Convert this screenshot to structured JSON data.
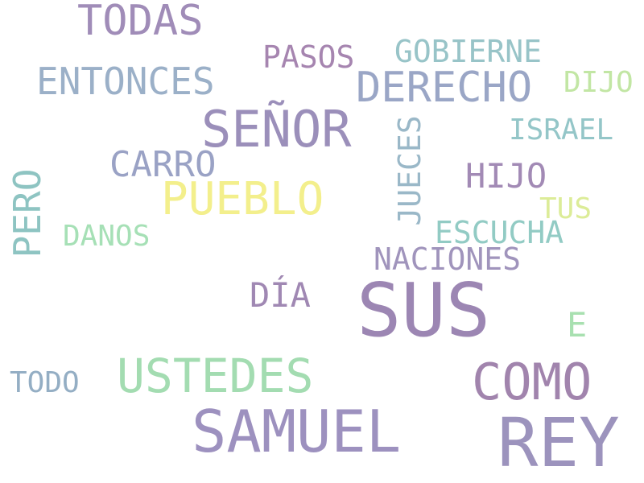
{
  "words": {
    "sus": {
      "text": "SUS",
      "color": "#9c86b3"
    },
    "rey": {
      "text": "REY",
      "color": "#9c93bd"
    },
    "samuel": {
      "text": "SAMUEL",
      "color": "#9d91bf"
    },
    "senor": {
      "text": "SEÑOR",
      "color": "#9b8fba"
    },
    "como": {
      "text": "COMO",
      "color": "#a184ad"
    },
    "ustedes": {
      "text": "USTEDES",
      "color": "#a3dcb1"
    },
    "pueblo": {
      "text": "PUEBLO",
      "color": "#f3ef8c"
    },
    "todas": {
      "text": "TODAS",
      "color": "#a08cb8"
    },
    "derecho": {
      "text": "DERECHO",
      "color": "#9aa6c6"
    },
    "entonces": {
      "text": "ENTONCES",
      "color": "#9bb0c8"
    },
    "carro": {
      "text": "CARRO",
      "color": "#9aa2c5"
    },
    "hijo": {
      "text": "HIJO",
      "color": "#a28ab5"
    },
    "dia": {
      "text": "DÍA",
      "color": "#a088b3"
    },
    "e": {
      "text": "E",
      "color": "#a8e0b0"
    },
    "pasos": {
      "text": "PASOS",
      "color": "#a685b0"
    },
    "gobierne": {
      "text": "GOBIERNE",
      "color": "#98c4c8"
    },
    "escucha": {
      "text": "ESCUCHA",
      "color": "#92cbc4"
    },
    "naciones": {
      "text": "NACIONES",
      "color": "#a094bc"
    },
    "dijo": {
      "text": "DIJO",
      "color": "#c2e6a4"
    },
    "israel": {
      "text": "ISRAEL",
      "color": "#94c6c8"
    },
    "tus": {
      "text": "TUS",
      "color": "#dcec98"
    },
    "danos": {
      "text": "DANOS",
      "color": "#a6e0b6"
    },
    "todo": {
      "text": "TODO",
      "color": "#94aec4"
    },
    "jueces": {
      "text": "JUECES",
      "color": "#9ab8c8"
    },
    "pero": {
      "text": "PERO",
      "color": "#8ec4c2"
    }
  }
}
